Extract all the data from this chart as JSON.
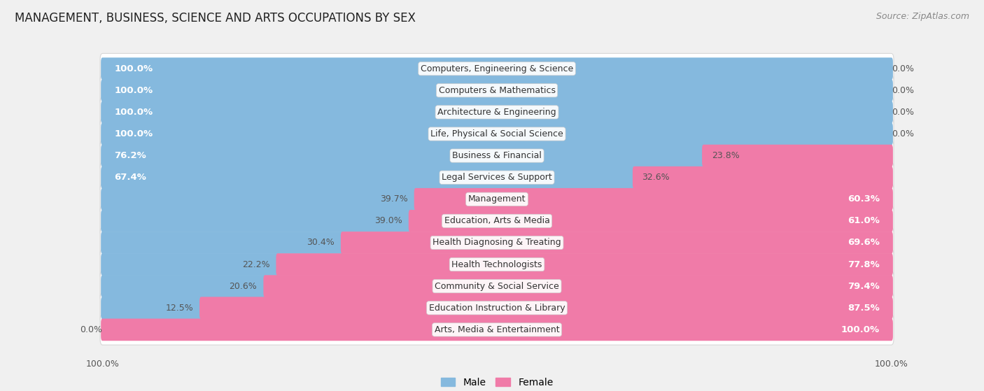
{
  "title": "MANAGEMENT, BUSINESS, SCIENCE AND ARTS OCCUPATIONS BY SEX",
  "source": "Source: ZipAtlas.com",
  "categories": [
    "Computers, Engineering & Science",
    "Computers & Mathematics",
    "Architecture & Engineering",
    "Life, Physical & Social Science",
    "Business & Financial",
    "Legal Services & Support",
    "Management",
    "Education, Arts & Media",
    "Health Diagnosing & Treating",
    "Health Technologists",
    "Community & Social Service",
    "Education Instruction & Library",
    "Arts, Media & Entertainment"
  ],
  "male_pct": [
    100.0,
    100.0,
    100.0,
    100.0,
    76.2,
    67.4,
    39.7,
    39.0,
    30.4,
    22.2,
    20.6,
    12.5,
    0.0
  ],
  "female_pct": [
    0.0,
    0.0,
    0.0,
    0.0,
    23.8,
    32.6,
    60.3,
    61.0,
    69.6,
    77.8,
    79.4,
    87.5,
    100.0
  ],
  "male_color": "#85b9de",
  "female_color": "#f07ba8",
  "bg_color": "#f0f0f0",
  "row_bg_color": "#ffffff",
  "row_border_color": "#d8d8d8",
  "title_fontsize": 12,
  "source_fontsize": 9,
  "pct_fontsize_inside": 9.5,
  "pct_fontsize_outside": 9,
  "category_fontsize": 9,
  "axis_label_fontsize": 9
}
